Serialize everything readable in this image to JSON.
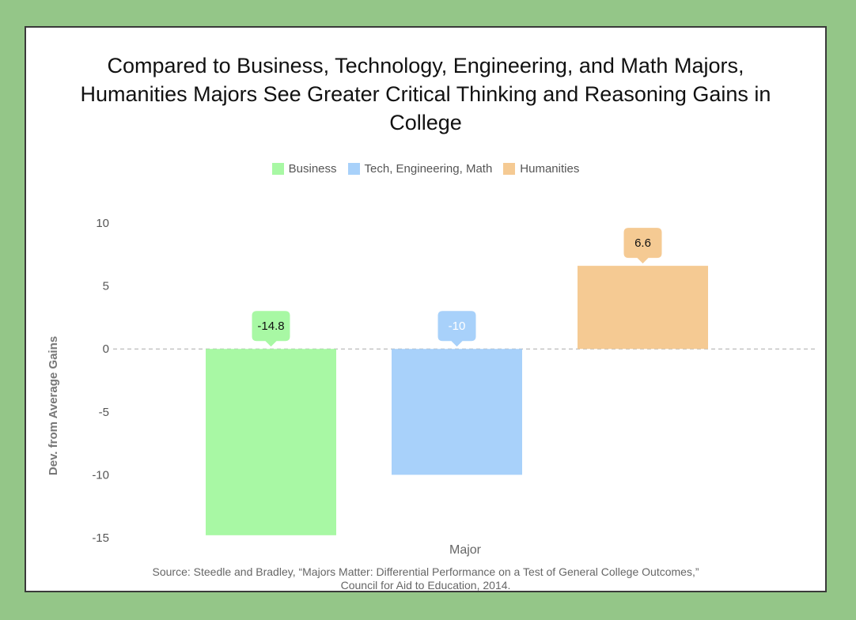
{
  "chart_data": {
    "type": "bar",
    "title_lines": [
      "Compared to Business, Technology, Engineering, and Math Majors,",
      "Humanities Majors See Greater Critical Thinking and Reasoning Gains in",
      "College"
    ],
    "categories": [
      "Business",
      "Tech, Engineering, Math",
      "Humanities"
    ],
    "values": [
      -14.8,
      -10,
      6.6
    ],
    "value_labels": [
      "-14.8",
      "-10",
      "6.6"
    ],
    "colors": [
      "#a8f8a4",
      "#a8d1fa",
      "#f5ca93"
    ],
    "label_text_colors": [
      "#111111",
      "#ffffff",
      "#111111"
    ],
    "xlabel": "Major",
    "ylabel": "Dev. from Average Gains",
    "ylim": [
      -15,
      10
    ],
    "yticks": [
      10,
      5,
      0,
      -5,
      -10,
      -15
    ],
    "ytick_labels": [
      "10",
      "5",
      "0",
      "-5",
      "-10",
      "-15"
    ],
    "legend_position": "top-center"
  },
  "source": {
    "line1": "Source:  Steedle and Bradley, “Majors Matter: Differential Performance on a Test of General College Outcomes,”",
    "line2": "Council for Aid to Education, 2014."
  }
}
